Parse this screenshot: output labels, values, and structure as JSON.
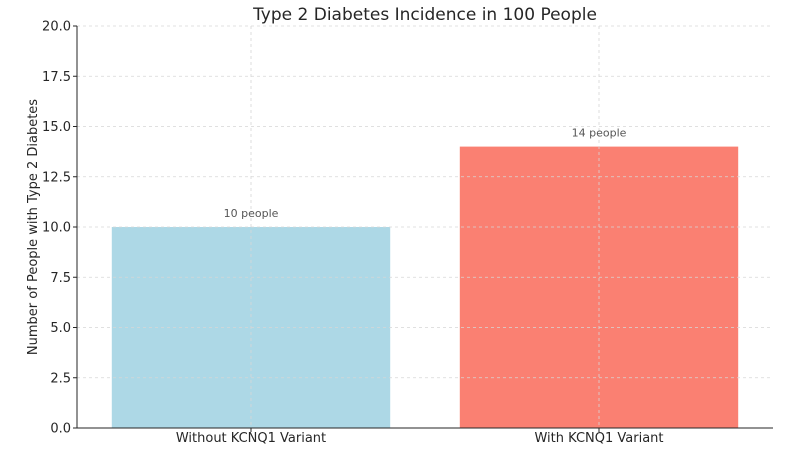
{
  "chart_data": {
    "type": "bar",
    "title": "Type 2 Diabetes Incidence in 100 People",
    "xlabel": "",
    "ylabel": "Number of People with Type 2 Diabetes",
    "categories": [
      "Without KCNQ1 Variant",
      "With KCNQ1 Variant"
    ],
    "values": [
      10,
      14
    ],
    "data_labels": [
      "10 people",
      "14 people"
    ],
    "colors": [
      "#add8e6",
      "#fa8072"
    ],
    "ylim": [
      0,
      20
    ],
    "yticks": [
      0,
      2.5,
      5,
      7.5,
      10,
      12.5,
      15,
      17.5,
      20
    ],
    "ytick_labels": [
      "0.0",
      "2.5",
      "5.0",
      "7.5",
      "10.0",
      "12.5",
      "15.0",
      "17.5",
      "20.0"
    ],
    "grid": true,
    "legend": "none"
  }
}
